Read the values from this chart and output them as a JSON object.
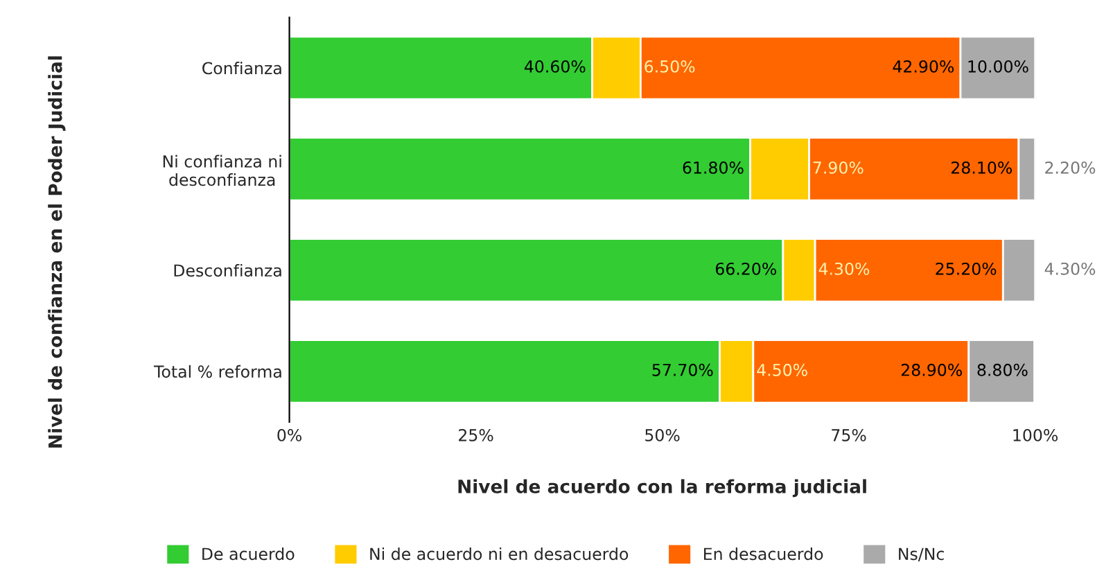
{
  "chart_data": {
    "type": "bar",
    "orientation": "horizontal",
    "stacked": true,
    "data_labels": true,
    "xlabel": "Nivel de acuerdo con la reforma judicial",
    "ylabel": "Nivel de confianza en el Poder Judicial",
    "categories": [
      "Confianza",
      "Ni confianza ni\ndesconfianza",
      "Desconfianza",
      "Total % reforma"
    ],
    "series": [
      {
        "name": "De acuerdo",
        "color": "#33cc33",
        "values": [
          40.6,
          61.8,
          66.2,
          57.7
        ],
        "value_labels": [
          "40.60%",
          "61.80%",
          "66.20%",
          "57.70%"
        ]
      },
      {
        "name": "Ni de acuerdo ni en desacuerdo",
        "color": "#ffcc00",
        "values": [
          6.5,
          7.9,
          4.3,
          4.5
        ],
        "value_labels": [
          "6.50%",
          "7.90%",
          "4.30%",
          "4.50%"
        ]
      },
      {
        "name": "En desacuerdo",
        "color": "#ff6600",
        "values": [
          42.9,
          28.1,
          25.2,
          28.9
        ],
        "value_labels": [
          "42.90%",
          "28.10%",
          "25.20%",
          "28.90%"
        ]
      },
      {
        "name": "Ns/Nc",
        "color": "#aaaaaa",
        "values": [
          10.0,
          2.2,
          4.3,
          8.8
        ],
        "value_labels": [
          "10.00%",
          "2.20%",
          "4.30%",
          "8.80%"
        ]
      }
    ],
    "xlim": [
      0,
      100
    ],
    "xticks": [
      {
        "value": 0,
        "label": "0%"
      },
      {
        "value": 25,
        "label": "25%"
      },
      {
        "value": 50,
        "label": "50%"
      },
      {
        "value": 75,
        "label": "75%"
      },
      {
        "value": 100,
        "label": "100%"
      }
    ],
    "grid": false,
    "legend": "bottom"
  }
}
